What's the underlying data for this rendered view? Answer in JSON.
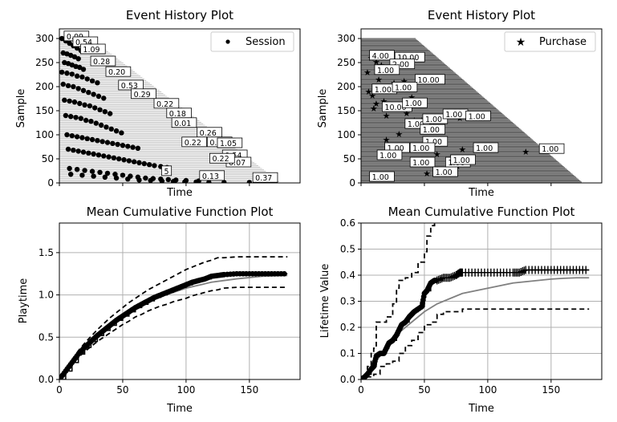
{
  "chart_data": [
    {
      "type": "scatter",
      "title": "Event History Plot",
      "xlabel": "Time",
      "ylabel": "Sample",
      "ylim": [
        0,
        320
      ],
      "xlim": [
        0,
        190
      ],
      "yticks": [
        0,
        50,
        100,
        150,
        200,
        250,
        300
      ],
      "xticks": [],
      "grid": false,
      "legend": {
        "entries": [
          "Session"
        ],
        "position": "top-right"
      },
      "series": [
        {
          "name": "Session",
          "x": [
            2,
            5,
            8,
            11,
            14,
            17,
            3,
            6,
            9,
            12,
            15,
            4,
            7,
            10,
            13,
            16,
            19,
            2,
            6,
            10,
            14,
            18,
            22,
            26,
            30,
            3,
            7,
            11,
            15,
            19,
            23,
            27,
            31,
            35,
            4,
            8,
            12,
            16,
            20,
            24,
            28,
            32,
            36,
            40,
            5,
            9,
            13,
            17,
            21,
            25,
            29,
            33,
            37,
            41,
            45,
            49,
            6,
            10,
            14,
            18,
            22,
            26,
            30,
            34,
            38,
            42,
            46,
            50,
            54,
            58,
            62,
            7,
            11,
            15,
            19,
            23,
            27,
            31,
            35,
            39,
            43,
            47,
            51,
            55,
            59,
            63,
            67,
            71,
            75,
            80,
            85,
            8,
            14,
            20,
            26,
            32,
            38,
            44,
            50,
            56,
            62,
            68,
            74,
            80,
            86,
            92,
            100,
            110,
            9,
            18,
            27,
            36,
            45,
            54,
            63,
            72,
            81,
            90,
            99,
            108,
            118,
            130,
            150
          ],
          "y": [
            300,
            295,
            290,
            285,
            280,
            275,
            270,
            268,
            265,
            262,
            258,
            250,
            248,
            245,
            242,
            240,
            236,
            230,
            228,
            226,
            222,
            220,
            216,
            212,
            208,
            205,
            202,
            200,
            196,
            192,
            188,
            184,
            180,
            176,
            172,
            170,
            168,
            165,
            162,
            160,
            156,
            152,
            148,
            144,
            140,
            138,
            136,
            134,
            130,
            128,
            124,
            120,
            116,
            112,
            108,
            104,
            100,
            98,
            96,
            94,
            92,
            90,
            88,
            86,
            84,
            82,
            80,
            78,
            76,
            74,
            72,
            70,
            68,
            66,
            64,
            62,
            60,
            58,
            56,
            54,
            52,
            50,
            48,
            46,
            44,
            42,
            40,
            38,
            36,
            34,
            32,
            30,
            28,
            26,
            24,
            22,
            20,
            18,
            16,
            14,
            12,
            10,
            9,
            8,
            7,
            6,
            5,
            4,
            18,
            16,
            14,
            12,
            10,
            8,
            6,
            5,
            4,
            3,
            2,
            2,
            1,
            1,
            1
          ]
        }
      ],
      "annotations": [
        {
          "text": "0.09",
          "x": 5,
          "y": 302
        },
        {
          "text": "0.54",
          "x": 12,
          "y": 290
        },
        {
          "text": "1.09",
          "x": 18,
          "y": 275
        },
        {
          "text": "0.28",
          "x": 26,
          "y": 250
        },
        {
          "text": "0.20",
          "x": 38,
          "y": 228
        },
        {
          "text": "0.53",
          "x": 48,
          "y": 200
        },
        {
          "text": "0.29",
          "x": 58,
          "y": 182
        },
        {
          "text": "0.22",
          "x": 76,
          "y": 162
        },
        {
          "text": "0.18",
          "x": 86,
          "y": 142
        },
        {
          "text": "0.01",
          "x": 90,
          "y": 122
        },
        {
          "text": "0.26",
          "x": 110,
          "y": 102
        },
        {
          "text": "0.22",
          "x": 98,
          "y": 82
        },
        {
          "text": "0.22",
          "x": 118,
          "y": 82
        },
        {
          "text": "1.05",
          "x": 126,
          "y": 80
        },
        {
          "text": "0.54",
          "x": 130,
          "y": 55
        },
        {
          "text": "0.07",
          "x": 133,
          "y": 40
        },
        {
          "text": "0.22",
          "x": 120,
          "y": 48
        },
        {
          "text": "0.13",
          "x": 112,
          "y": 12
        },
        {
          "text": "0.37",
          "x": 154,
          "y": 8
        },
        {
          "text": "5",
          "x": 82,
          "y": 22
        }
      ]
    },
    {
      "type": "scatter",
      "title": "Event History Plot",
      "xlabel": "Time",
      "ylabel": "Sample",
      "ylim": [
        0,
        320
      ],
      "xlim": [
        0,
        190
      ],
      "yticks": [
        0,
        50,
        100,
        150,
        200,
        250,
        300
      ],
      "xticks": [],
      "grid": false,
      "legend": {
        "entries": [
          "Purchase"
        ],
        "position": "top-right"
      },
      "series": [
        {
          "name": "Purchase",
          "x": [
            8,
            12,
            16,
            22,
            5,
            9,
            14,
            6,
            10,
            18,
            26,
            34,
            12,
            20,
            36,
            42,
            48,
            56,
            62,
            78,
            80,
            20,
            24,
            46,
            52,
            60,
            70,
            76,
            130,
            30,
            40
          ],
          "y": [
            260,
            252,
            245,
            240,
            230,
            182,
            215,
            190,
            155,
            170,
            208,
            212,
            165,
            140,
            145,
            130,
            130,
            128,
            135,
            135,
            70,
            90,
            75,
            45,
            20,
            60,
            40,
            35,
            65,
            102,
            178
          ],
          "labels": [
            "4.00",
            "10.00",
            "2.00",
            "10.00",
            "1.00",
            "1.00",
            "1.00",
            "10.00",
            "10.00",
            "1.00",
            "1.00",
            "10.00",
            "1.00",
            "1.00",
            "1.00",
            "1.00",
            "1.00",
            "1.00",
            "1.00",
            "1.00",
            "1.00",
            "1.00",
            "1.00",
            "1.00",
            "1.00",
            "1.00",
            "1.00",
            "1.00",
            "1.00",
            "1.00",
            "1.00"
          ]
        }
      ],
      "annotations": [
        {
          "text": "4.00",
          "x": 8,
          "y": 262
        },
        {
          "text": "10.00",
          "x": 28,
          "y": 258
        },
        {
          "text": "2.00",
          "x": 24,
          "y": 244
        },
        {
          "text": "1.00",
          "x": 12,
          "y": 232
        },
        {
          "text": "10.00",
          "x": 44,
          "y": 212
        },
        {
          "text": "1.00",
          "x": 10,
          "y": 192
        },
        {
          "text": "1.00",
          "x": 26,
          "y": 196
        },
        {
          "text": "10.00",
          "x": 18,
          "y": 155
        },
        {
          "text": "1.00",
          "x": 34,
          "y": 163
        },
        {
          "text": "1.00",
          "x": 36,
          "y": 120
        },
        {
          "text": "1.00",
          "x": 50,
          "y": 130
        },
        {
          "text": "1.00",
          "x": 66,
          "y": 140
        },
        {
          "text": "1.00",
          "x": 84,
          "y": 136
        },
        {
          "text": "1.00",
          "x": 48,
          "y": 108
        },
        {
          "text": "1.00",
          "x": 50,
          "y": 83
        },
        {
          "text": "1.00",
          "x": 40,
          "y": 70
        },
        {
          "text": "1.00",
          "x": 40,
          "y": 40
        },
        {
          "text": "1.00",
          "x": 20,
          "y": 70
        },
        {
          "text": "1.00",
          "x": 14,
          "y": 55
        },
        {
          "text": "1.00",
          "x": 8,
          "y": 10
        },
        {
          "text": "1.00",
          "x": 58,
          "y": 20
        },
        {
          "text": "1.00",
          "x": 68,
          "y": 40
        },
        {
          "text": "1.00",
          "x": 72,
          "y": 45
        },
        {
          "text": "1.00",
          "x": 90,
          "y": 70
        },
        {
          "text": "1.00",
          "x": 142,
          "y": 68
        }
      ]
    },
    {
      "type": "line",
      "title": "Mean Cumulative Function Plot",
      "xlabel": "Time",
      "ylabel": "Playtime",
      "xlim": [
        0,
        190
      ],
      "ylim": [
        0,
        1.85
      ],
      "xticks": [
        0,
        50,
        100,
        150
      ],
      "yticks": [
        0.0,
        0.5,
        1.0,
        1.5
      ],
      "grid": true,
      "series": [
        {
          "x": [
            0,
            5,
            10,
            15,
            20,
            25,
            30,
            35,
            40,
            45,
            50,
            55,
            60,
            65,
            70,
            75,
            80,
            85,
            90,
            95,
            100,
            105,
            110,
            115,
            120,
            125,
            130,
            140,
            150,
            160,
            170,
            180
          ],
          "y": [
            0,
            0.1,
            0.2,
            0.3,
            0.38,
            0.45,
            0.52,
            0.58,
            0.64,
            0.7,
            0.75,
            0.8,
            0.85,
            0.89,
            0.93,
            0.97,
            1.0,
            1.03,
            1.06,
            1.09,
            1.12,
            1.15,
            1.17,
            1.19,
            1.22,
            1.23,
            1.24,
            1.25,
            1.25,
            1.25,
            1.25,
            1.25
          ]
        },
        {
          "x": [
            0,
            5,
            10,
            15,
            20,
            25,
            30,
            35,
            40,
            45,
            50,
            55,
            60,
            65,
            70,
            75,
            80,
            85,
            90,
            95,
            100,
            105,
            110,
            115,
            120,
            125,
            130,
            140,
            150,
            160,
            170,
            180
          ],
          "y": [
            0,
            0.12,
            0.23,
            0.34,
            0.43,
            0.51,
            0.59,
            0.66,
            0.73,
            0.79,
            0.85,
            0.91,
            0.96,
            1.01,
            1.06,
            1.1,
            1.14,
            1.18,
            1.22,
            1.26,
            1.3,
            1.33,
            1.36,
            1.39,
            1.41,
            1.44,
            1.44,
            1.45,
            1.45,
            1.45,
            1.45,
            1.45
          ]
        },
        {
          "x": [
            0,
            5,
            10,
            15,
            20,
            25,
            30,
            35,
            40,
            45,
            50,
            55,
            60,
            65,
            70,
            75,
            80,
            85,
            90,
            95,
            100,
            105,
            110,
            115,
            120,
            125,
            130,
            140,
            150,
            160,
            170,
            180
          ],
          "y": [
            0,
            0.08,
            0.17,
            0.26,
            0.33,
            0.39,
            0.45,
            0.5,
            0.55,
            0.6,
            0.65,
            0.69,
            0.74,
            0.77,
            0.81,
            0.84,
            0.87,
            0.89,
            0.92,
            0.94,
            0.96,
            0.99,
            1.01,
            1.03,
            1.05,
            1.06,
            1.08,
            1.09,
            1.09,
            1.09,
            1.09,
            1.09
          ]
        },
        {
          "x": [
            0,
            20,
            40,
            60,
            80,
            100,
            120,
            140,
            160,
            180
          ],
          "y": [
            0,
            0.38,
            0.64,
            0.84,
            0.98,
            1.08,
            1.15,
            1.19,
            1.22,
            1.23
          ]
        }
      ]
    },
    {
      "type": "line",
      "title": "Mean Cumulative Function Plot",
      "xlabel": "Time",
      "ylabel": "Lifetime Value",
      "xlim": [
        0,
        190
      ],
      "ylim": [
        0,
        0.6
      ],
      "xticks": [
        0,
        50,
        100,
        150
      ],
      "yticks": [
        0.0,
        0.1,
        0.2,
        0.3,
        0.4,
        0.5,
        0.6
      ],
      "grid": true,
      "series": [
        {
          "x": [
            0,
            3,
            5,
            8,
            10,
            12,
            15,
            18,
            20,
            22,
            25,
            28,
            30,
            32,
            35,
            38,
            40,
            42,
            45,
            48,
            50,
            52,
            55,
            58,
            60,
            65,
            70,
            75,
            78,
            80,
            90,
            100,
            110,
            120,
            125,
            130,
            140,
            150,
            160,
            170,
            180
          ],
          "y": [
            0,
            0.01,
            0.02,
            0.04,
            0.05,
            0.09,
            0.1,
            0.1,
            0.12,
            0.14,
            0.15,
            0.17,
            0.19,
            0.21,
            0.22,
            0.24,
            0.25,
            0.26,
            0.27,
            0.28,
            0.33,
            0.34,
            0.37,
            0.38,
            0.38,
            0.39,
            0.39,
            0.4,
            0.41,
            0.41,
            0.41,
            0.41,
            0.41,
            0.41,
            0.41,
            0.42,
            0.42,
            0.42,
            0.42,
            0.42,
            0.42
          ]
        },
        {
          "x": [
            0,
            5,
            8,
            10,
            12,
            15,
            20,
            25,
            28,
            30,
            35,
            40,
            45,
            50,
            52,
            55,
            58
          ],
          "y": [
            0,
            0.05,
            0.1,
            0.12,
            0.22,
            0.22,
            0.24,
            0.29,
            0.35,
            0.38,
            0.39,
            0.41,
            0.45,
            0.49,
            0.55,
            0.59,
            0.6
          ]
        },
        {
          "x": [
            0,
            5,
            10,
            15,
            20,
            25,
            30,
            35,
            40,
            45,
            50,
            55,
            60,
            65,
            70,
            75,
            80,
            130,
            150,
            180
          ],
          "y": [
            0,
            0.01,
            0.02,
            0.05,
            0.06,
            0.07,
            0.1,
            0.13,
            0.15,
            0.18,
            0.21,
            0.22,
            0.25,
            0.26,
            0.26,
            0.26,
            0.27,
            0.27,
            0.27,
            0.27
          ]
        },
        {
          "x": [
            0,
            10,
            20,
            30,
            40,
            50,
            60,
            70,
            80,
            90,
            100,
            110,
            120,
            130,
            140,
            150,
            160,
            170,
            180
          ],
          "y": [
            0,
            0.06,
            0.12,
            0.18,
            0.22,
            0.26,
            0.29,
            0.31,
            0.33,
            0.34,
            0.35,
            0.36,
            0.37,
            0.375,
            0.38,
            0.385,
            0.388,
            0.39,
            0.39
          ]
        }
      ]
    }
  ]
}
